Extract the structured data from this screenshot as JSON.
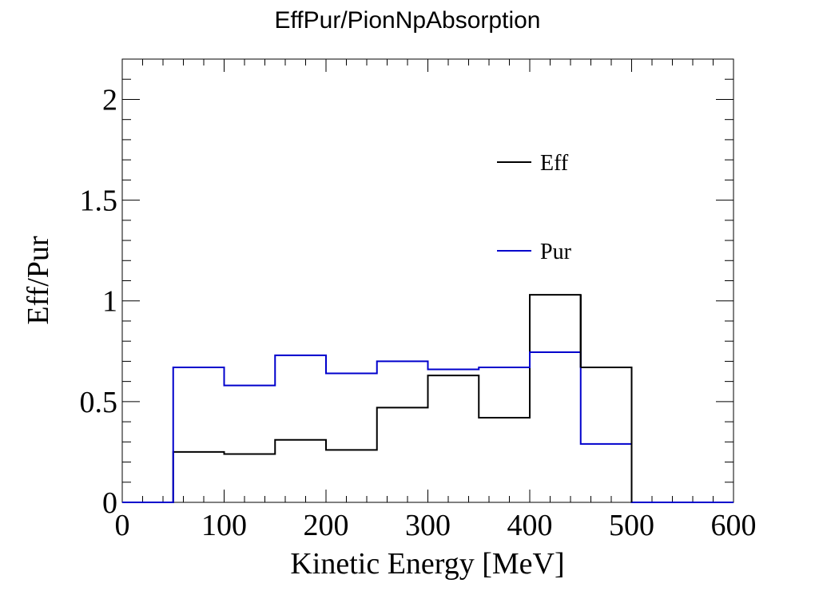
{
  "chart_data": {
    "type": "line",
    "title": "EffPur/PionNpAbsorption",
    "xlabel": "Kinetic Energy [MeV]",
    "ylabel": "Eff/Pur",
    "xlim": [
      0,
      600
    ],
    "ylim": [
      0,
      2.2
    ],
    "x_ticks": [
      "0",
      "100",
      "200",
      "300",
      "400",
      "500",
      "600"
    ],
    "y_ticks": [
      "0",
      "0.5",
      "1",
      "1.5",
      "2"
    ],
    "grid": false,
    "legend_position": "top-right",
    "bin_edges": [
      0,
      50,
      100,
      150,
      200,
      250,
      300,
      350,
      400,
      450,
      500,
      550,
      600
    ],
    "series": [
      {
        "name": "Eff",
        "color": "#000000",
        "values": [
          0,
          0.25,
          0.24,
          0.31,
          0.26,
          0.47,
          0.63,
          0.42,
          1.03,
          1.03,
          0,
          0
        ],
        "lower": [
          0,
          0.25,
          0.24,
          0.31,
          0.26,
          0.47,
          0.63,
          0.42,
          1.03,
          0.67,
          0,
          0
        ]
      },
      {
        "name": "Pur",
        "color": "#0000cc",
        "values": [
          0,
          0.67,
          0.58,
          0.73,
          0.64,
          0.7,
          0.66,
          0.67,
          0.745,
          0.29,
          0,
          0
        ],
        "lower": [
          0,
          0.67,
          0.58,
          0.73,
          0.64,
          0.7,
          0.66,
          0.67,
          0.745,
          0.29,
          0,
          0
        ]
      }
    ]
  }
}
